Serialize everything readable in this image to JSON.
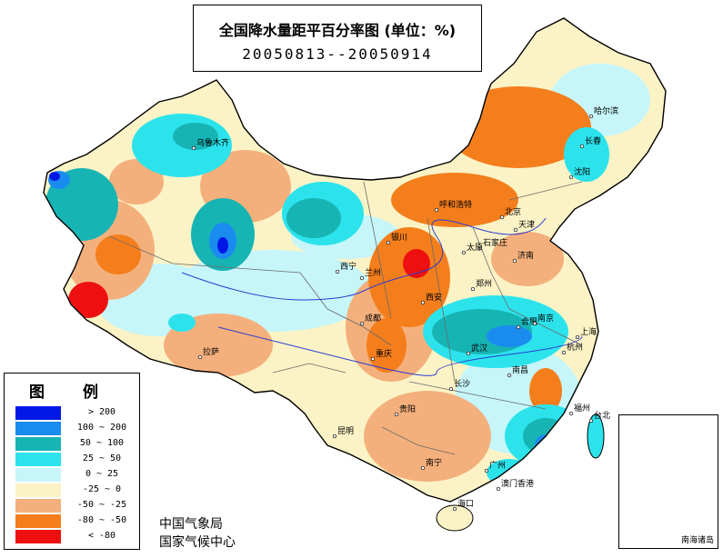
{
  "title": {
    "line1": "全国降水量距平百分率图 (单位：%)",
    "line2": "20050813--20050914"
  },
  "legend": {
    "title": "图 例",
    "items": [
      {
        "label": "> 200",
        "color": "#0018e6"
      },
      {
        "label": "100 ~ 200",
        "color": "#1a8cf0"
      },
      {
        "label": "50 ~ 100",
        "color": "#17b4b4"
      },
      {
        "label": "25 ~ 50",
        "color": "#2ce3ec"
      },
      {
        "label": "0 ~ 25",
        "color": "#c6f6fa"
      },
      {
        "label": "-25 ~ 0",
        "color": "#fbf3c6"
      },
      {
        "label": "-50 ~ -25",
        "color": "#f4b07c"
      },
      {
        "label": "-80 ~ -50",
        "color": "#f47e1c"
      },
      {
        "label": "< -80",
        "color": "#ee1010"
      }
    ]
  },
  "credits": [
    "中国气象局",
    "国家气候中心"
  ],
  "inset": {
    "label": "南海诸岛"
  },
  "cities": [
    {
      "name": "哈尔滨"
    },
    {
      "name": "长春"
    },
    {
      "name": "沈阳"
    },
    {
      "name": "呼和浩特"
    },
    {
      "name": "北京"
    },
    {
      "name": "天津"
    },
    {
      "name": "石家庄"
    },
    {
      "name": "太原"
    },
    {
      "name": "济南"
    },
    {
      "name": "银川"
    },
    {
      "name": "兰州"
    },
    {
      "name": "西宁"
    },
    {
      "name": "西安"
    },
    {
      "name": "郑州"
    },
    {
      "name": "合肥"
    },
    {
      "name": "南京"
    },
    {
      "name": "上海"
    },
    {
      "name": "武汉"
    },
    {
      "name": "成都"
    },
    {
      "name": "重庆"
    },
    {
      "name": "长沙"
    },
    {
      "name": "南昌"
    },
    {
      "name": "杭州"
    },
    {
      "name": "福州"
    },
    {
      "name": "台北"
    },
    {
      "name": "贵阳"
    },
    {
      "name": "昆明"
    },
    {
      "name": "南宁"
    },
    {
      "name": "广州"
    },
    {
      "name": "澳门香港"
    },
    {
      "name": "海口"
    },
    {
      "name": "拉萨"
    },
    {
      "name": "乌鲁木齐"
    }
  ],
  "colors": {
    "boundary": "#000000",
    "province_lines": "#6a6a6a",
    "rivers": "#2a3ccf"
  }
}
